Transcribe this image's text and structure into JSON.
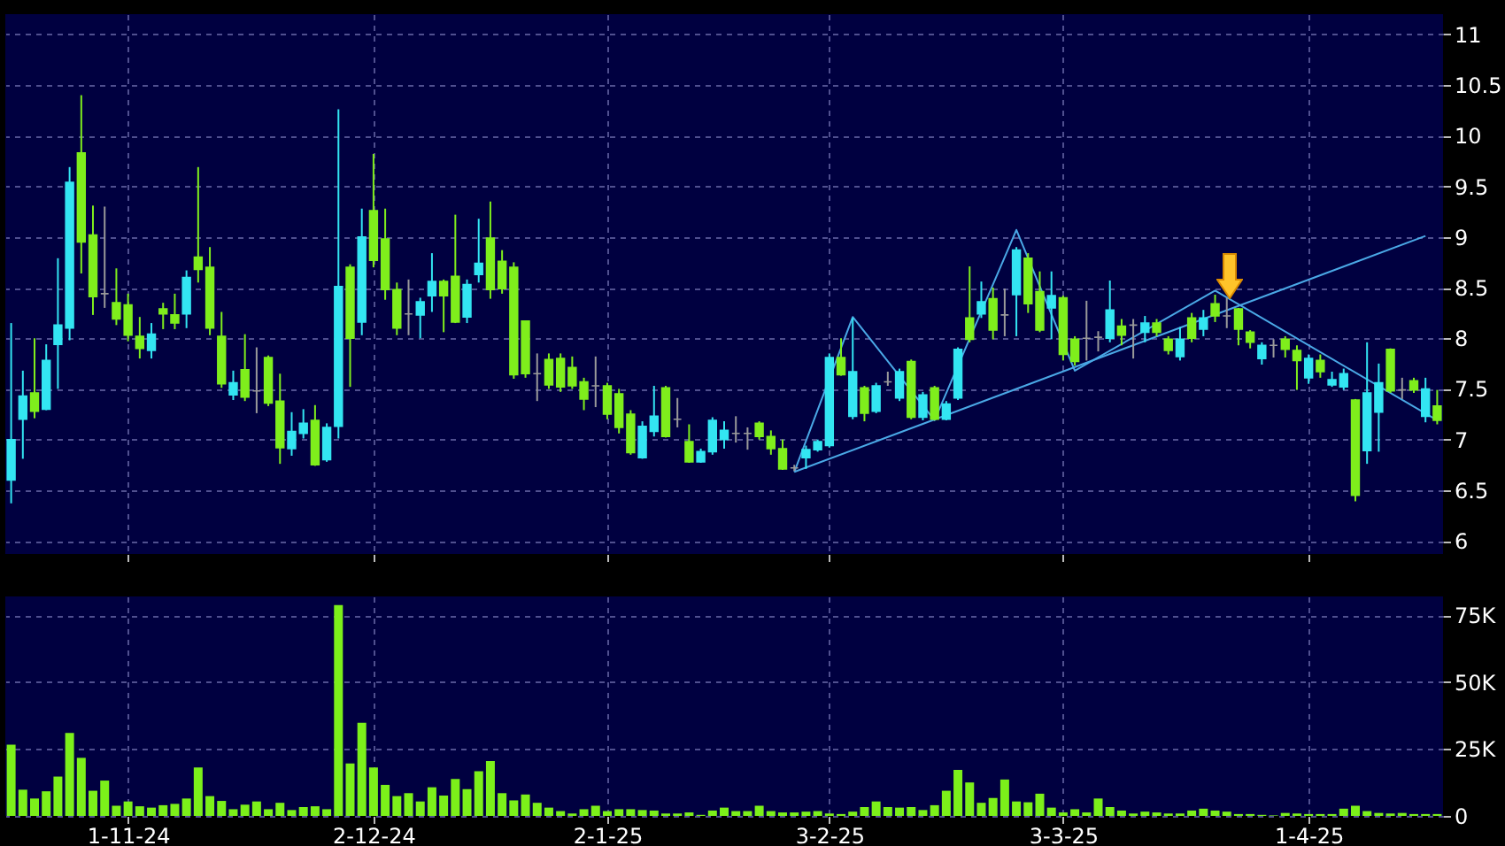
{
  "chart_data": [
    {
      "type": "candlestick",
      "grid": true,
      "ylim": [
        5.87,
        11.2
      ],
      "yticks": [
        6,
        6.5,
        7,
        7.5,
        8,
        8.5,
        9,
        9.5,
        10,
        10.5,
        11
      ],
      "categories": [
        null,
        null,
        null,
        null,
        null,
        null,
        null,
        null,
        null,
        null,
        null,
        null,
        null,
        null,
        null,
        null,
        null,
        null,
        null,
        null,
        null,
        null,
        null,
        null,
        null,
        null,
        null,
        null,
        null,
        null,
        null,
        null,
        null,
        null,
        null,
        null,
        null,
        null,
        null,
        null,
        null,
        null,
        null,
        null,
        null,
        null,
        null,
        null,
        null,
        null,
        null,
        null,
        null,
        null,
        null,
        null,
        null,
        null,
        null,
        null,
        null,
        null,
        null,
        null,
        null,
        null,
        null,
        null,
        null,
        null,
        null,
        null,
        null,
        null,
        null,
        null,
        null,
        null,
        null,
        null,
        null,
        null,
        null,
        null,
        null,
        null,
        null,
        null,
        null,
        null,
        null,
        null,
        null,
        null,
        null,
        null,
        null,
        null,
        null,
        null,
        null,
        null,
        null,
        null,
        null,
        null,
        null,
        null,
        null,
        null,
        null,
        null,
        null,
        null,
        null,
        null,
        null,
        null,
        null,
        null,
        null,
        null,
        null
      ],
      "ohlc": [
        [
          6.6,
          8.15,
          6.37,
          7.0
        ],
        [
          7.2,
          7.68,
          6.81,
          7.43
        ],
        [
          7.46,
          8.0,
          7.21,
          7.28
        ],
        [
          7.3,
          7.94,
          7.29,
          7.78
        ],
        [
          7.94,
          8.79,
          7.5,
          8.13
        ],
        [
          8.1,
          9.69,
          7.98,
          9.54
        ],
        [
          9.83,
          10.4,
          8.64,
          8.95
        ],
        [
          9.02,
          9.31,
          8.23,
          8.41
        ],
        [
          8.44,
          9.3,
          8.3,
          8.44
        ],
        [
          8.35,
          8.69,
          8.13,
          8.19
        ],
        [
          8.33,
          8.44,
          7.97,
          8.03
        ],
        [
          8.02,
          8.21,
          7.8,
          7.9
        ],
        [
          7.88,
          8.15,
          7.8,
          8.04
        ],
        [
          8.29,
          8.35,
          8.09,
          8.24
        ],
        [
          8.23,
          8.44,
          8.09,
          8.15
        ],
        [
          8.24,
          8.67,
          8.1,
          8.6
        ],
        [
          8.8,
          9.69,
          8.55,
          8.68
        ],
        [
          8.7,
          8.9,
          8.03,
          8.1
        ],
        [
          8.02,
          8.26,
          7.51,
          7.55
        ],
        [
          7.44,
          7.68,
          7.39,
          7.56
        ],
        [
          7.69,
          8.04,
          7.38,
          7.42
        ],
        [
          7.48,
          7.91,
          7.26,
          7.48
        ],
        [
          7.81,
          7.83,
          7.33,
          7.36
        ],
        [
          7.38,
          7.65,
          6.76,
          6.92
        ],
        [
          6.91,
          7.27,
          6.84,
          7.08
        ],
        [
          7.06,
          7.3,
          7.01,
          7.16
        ],
        [
          7.19,
          7.34,
          6.74,
          6.75
        ],
        [
          6.8,
          7.16,
          6.78,
          7.12
        ],
        [
          7.13,
          10.26,
          7.01,
          8.51
        ],
        [
          8.7,
          8.73,
          7.52,
          8.0
        ],
        [
          8.16,
          9.28,
          8.03,
          9.0
        ],
        [
          9.26,
          9.82,
          8.7,
          8.77
        ],
        [
          8.98,
          9.28,
          8.38,
          8.48
        ],
        [
          8.48,
          8.55,
          8.03,
          8.1
        ],
        [
          8.24,
          8.58,
          8.03,
          8.24
        ],
        [
          8.23,
          8.4,
          8.0,
          8.36
        ],
        [
          8.42,
          8.84,
          8.26,
          8.56
        ],
        [
          8.56,
          8.58,
          8.06,
          8.42
        ],
        [
          8.61,
          9.22,
          8.15,
          8.16
        ],
        [
          8.21,
          8.58,
          8.15,
          8.53
        ],
        [
          8.63,
          9.18,
          8.55,
          8.74
        ],
        [
          8.99,
          9.35,
          8.39,
          8.48
        ],
        [
          8.76,
          8.87,
          8.44,
          8.49
        ],
        [
          8.7,
          8.75,
          7.6,
          7.64
        ],
        [
          8.17,
          8.17,
          7.61,
          7.65
        ],
        [
          7.65,
          7.85,
          7.38,
          7.65
        ],
        [
          7.79,
          7.85,
          7.5,
          7.54
        ],
        [
          7.8,
          7.85,
          7.47,
          7.52
        ],
        [
          7.71,
          7.82,
          7.5,
          7.53
        ],
        [
          7.57,
          7.61,
          7.29,
          7.4
        ],
        [
          7.53,
          7.82,
          7.32,
          7.53
        ],
        [
          7.53,
          7.56,
          7.2,
          7.25
        ],
        [
          7.45,
          7.5,
          7.06,
          7.12
        ],
        [
          7.25,
          7.29,
          6.85,
          6.87
        ],
        [
          6.82,
          7.18,
          6.81,
          7.13
        ],
        [
          7.08,
          7.53,
          7.03,
          7.23
        ],
        [
          7.51,
          7.53,
          7.02,
          7.03
        ],
        [
          7.2,
          7.41,
          7.12,
          7.2
        ],
        [
          6.98,
          7.15,
          6.77,
          6.78
        ],
        [
          6.78,
          6.91,
          6.77,
          6.88
        ],
        [
          6.88,
          7.22,
          6.85,
          7.19
        ],
        [
          7.0,
          7.18,
          6.91,
          7.09
        ],
        [
          7.06,
          7.23,
          6.97,
          7.06
        ],
        [
          7.06,
          7.12,
          6.9,
          7.06
        ],
        [
          7.16,
          7.18,
          7.0,
          7.03
        ],
        [
          7.03,
          7.09,
          6.85,
          6.91
        ],
        [
          6.91,
          7.0,
          6.7,
          6.71
        ],
        [
          6.72,
          6.75,
          6.69,
          6.72
        ],
        [
          6.82,
          6.94,
          6.71,
          6.9
        ],
        [
          6.9,
          7.0,
          6.88,
          6.98
        ],
        [
          6.94,
          7.85,
          6.92,
          7.81
        ],
        [
          7.81,
          8.0,
          7.63,
          7.64
        ],
        [
          7.23,
          8.2,
          7.2,
          7.67
        ],
        [
          7.51,
          7.53,
          7.18,
          7.26
        ],
        [
          7.28,
          7.56,
          7.26,
          7.53
        ],
        [
          7.57,
          7.67,
          7.53,
          7.57
        ],
        [
          7.41,
          7.7,
          7.38,
          7.67
        ],
        [
          7.77,
          7.79,
          7.2,
          7.22
        ],
        [
          7.22,
          7.47,
          7.19,
          7.44
        ],
        [
          7.51,
          7.53,
          7.19,
          7.2
        ],
        [
          7.2,
          7.38,
          7.19,
          7.35
        ],
        [
          7.41,
          7.91,
          7.39,
          7.89
        ],
        [
          8.2,
          8.71,
          7.96,
          7.99
        ],
        [
          8.24,
          8.56,
          8.2,
          8.36
        ],
        [
          8.39,
          8.5,
          7.99,
          8.08
        ],
        [
          8.23,
          8.49,
          8.02,
          8.23
        ],
        [
          8.43,
          8.9,
          8.02,
          8.87
        ],
        [
          8.79,
          8.84,
          8.25,
          8.34
        ],
        [
          8.46,
          8.66,
          8.06,
          8.08
        ],
        [
          8.3,
          8.66,
          7.99,
          8.42
        ],
        [
          8.4,
          8.42,
          7.78,
          7.84
        ],
        [
          7.99,
          8.02,
          7.73,
          7.77
        ],
        [
          8.0,
          8.37,
          7.78,
          8.0
        ],
        [
          8.01,
          8.07,
          7.87,
          8.01
        ],
        [
          8.0,
          8.57,
          7.96,
          8.28
        ],
        [
          8.12,
          8.19,
          7.93,
          8.03
        ],
        [
          8.13,
          8.19,
          7.8,
          8.13
        ],
        [
          8.06,
          8.22,
          7.96,
          8.15
        ],
        [
          8.15,
          8.19,
          8.02,
          8.06
        ],
        [
          7.99,
          8.02,
          7.84,
          7.88
        ],
        [
          7.82,
          8.11,
          7.78,
          7.99
        ],
        [
          8.2,
          8.25,
          7.96,
          8.0
        ],
        [
          8.09,
          8.28,
          8.02,
          8.2
        ],
        [
          8.34,
          8.43,
          8.16,
          8.22
        ],
        [
          8.22,
          8.4,
          8.1,
          8.22
        ],
        [
          8.29,
          8.3,
          7.93,
          8.09
        ],
        [
          8.06,
          8.08,
          7.9,
          7.96
        ],
        [
          7.8,
          7.96,
          7.74,
          7.93
        ],
        [
          7.93,
          7.99,
          7.81,
          7.93
        ],
        [
          7.99,
          8.02,
          7.81,
          7.89
        ],
        [
          7.88,
          7.93,
          7.49,
          7.78
        ],
        [
          7.61,
          7.84,
          7.55,
          7.8
        ],
        [
          7.78,
          7.84,
          7.61,
          7.67
        ],
        [
          7.54,
          7.67,
          7.52,
          7.59
        ],
        [
          7.52,
          7.7,
          7.49,
          7.65
        ],
        [
          7.39,
          7.4,
          6.39,
          6.45
        ],
        [
          6.89,
          7.96,
          6.76,
          7.46
        ],
        [
          7.27,
          7.75,
          6.88,
          7.56
        ],
        [
          7.89,
          7.9,
          7.46,
          7.48
        ],
        [
          7.49,
          7.61,
          7.4,
          7.49
        ],
        [
          7.58,
          7.61,
          7.46,
          7.49
        ],
        [
          7.23,
          7.61,
          7.17,
          7.5
        ],
        [
          7.33,
          7.49,
          7.15,
          7.19
        ]
      ],
      "colors": [
        "#33e5f2",
        "#33e5f2",
        "#7fee1c",
        "#33e5f2",
        "#33e5f2",
        "#33e5f2",
        "#7fee1c",
        "#7fee1c",
        "#9a9a9a",
        "#7fee1c",
        "#7fee1c",
        "#7fee1c",
        "#33e5f2",
        "#7fee1c",
        "#7fee1c",
        "#33e5f2",
        "#7fee1c",
        "#7fee1c",
        "#7fee1c",
        "#33e5f2",
        "#7fee1c",
        "#9a9a9a",
        "#7fee1c",
        "#7fee1c",
        "#33e5f2",
        "#33e5f2",
        "#7fee1c",
        "#33e5f2",
        "#33e5f2",
        "#7fee1c",
        "#33e5f2",
        "#7fee1c",
        "#7fee1c",
        "#7fee1c",
        "#9a9a9a",
        "#33e5f2",
        "#33e5f2",
        "#7fee1c",
        "#7fee1c",
        "#33e5f2",
        "#33e5f2",
        "#7fee1c",
        "#7fee1c",
        "#7fee1c",
        "#7fee1c",
        "#9a9a9a",
        "#7fee1c",
        "#7fee1c",
        "#7fee1c",
        "#7fee1c",
        "#9a9a9a",
        "#7fee1c",
        "#7fee1c",
        "#7fee1c",
        "#33e5f2",
        "#33e5f2",
        "#7fee1c",
        "#9a9a9a",
        "#7fee1c",
        "#33e5f2",
        "#33e5f2",
        "#33e5f2",
        "#9a9a9a",
        "#9a9a9a",
        "#7fee1c",
        "#7fee1c",
        "#7fee1c",
        "#9a9a9a",
        "#33e5f2",
        "#33e5f2",
        "#33e5f2",
        "#7fee1c",
        "#33e5f2",
        "#7fee1c",
        "#33e5f2",
        "#9a9a9a",
        "#33e5f2",
        "#7fee1c",
        "#33e5f2",
        "#7fee1c",
        "#33e5f2",
        "#33e5f2",
        "#7fee1c",
        "#33e5f2",
        "#7fee1c",
        "#9a9a9a",
        "#33e5f2",
        "#7fee1c",
        "#7fee1c",
        "#33e5f2",
        "#7fee1c",
        "#7fee1c",
        "#9a9a9a",
        "#9a9a9a",
        "#33e5f2",
        "#7fee1c",
        "#9a9a9a",
        "#33e5f2",
        "#7fee1c",
        "#7fee1c",
        "#33e5f2",
        "#7fee1c",
        "#33e5f2",
        "#7fee1c",
        "#9a9a9a",
        "#7fee1c",
        "#7fee1c",
        "#33e5f2",
        "#9a9a9a",
        "#7fee1c",
        "#7fee1c",
        "#33e5f2",
        "#7fee1c",
        "#33e5f2",
        "#33e5f2",
        "#7fee1c",
        "#33e5f2",
        "#33e5f2",
        "#7fee1c",
        "#9a9a9a",
        "#7fee1c",
        "#33e5f2",
        "#7fee1c"
      ],
      "marker": "none",
      "series": [
        {
          "type": "line",
          "color": "#4aa8e6",
          "values": [
            null,
            null,
            null,
            null,
            null,
            null,
            null,
            null,
            null,
            null,
            null,
            null,
            null,
            null,
            null,
            null,
            null,
            null,
            null,
            null,
            null,
            null,
            null,
            null,
            null,
            null,
            null,
            null,
            null,
            null,
            null,
            null,
            null,
            null,
            null,
            null,
            null,
            null,
            null,
            null,
            null,
            null,
            null,
            null,
            null,
            null,
            null,
            null,
            null,
            null,
            null,
            null,
            null,
            null,
            null,
            null,
            null,
            null,
            null,
            null,
            null,
            null,
            null,
            null,
            null,
            null,
            null,
            6.68,
            null,
            null,
            null,
            null,
            8.21,
            null,
            null,
            null,
            null,
            null,
            null,
            7.19,
            null,
            null,
            null,
            null,
            null,
            null,
            9.07,
            null,
            null,
            null,
            null,
            7.68,
            null,
            null,
            null,
            null,
            null,
            null,
            null,
            null,
            null,
            null,
            null,
            8.47,
            null,
            null,
            null,
            null,
            null,
            null,
            null,
            null,
            null,
            null,
            null,
            null,
            null,
            null,
            null,
            null,
            null,
            null,
            7.19
          ]
        },
        {
          "type": "line",
          "color": "#4aa8e6",
          "values": [
            null,
            null,
            null,
            null,
            null,
            null,
            null,
            null,
            null,
            null,
            null,
            null,
            null,
            null,
            null,
            null,
            null,
            null,
            null,
            null,
            null,
            null,
            null,
            null,
            null,
            null,
            null,
            null,
            null,
            null,
            null,
            null,
            null,
            null,
            null,
            null,
            null,
            null,
            null,
            null,
            null,
            null,
            null,
            null,
            null,
            null,
            null,
            null,
            null,
            null,
            null,
            null,
            null,
            null,
            null,
            null,
            null,
            null,
            null,
            null,
            null,
            null,
            null,
            null,
            null,
            null,
            null,
            6.68,
            null,
            null,
            null,
            null,
            null,
            null,
            null,
            null,
            null,
            null,
            null,
            null,
            null,
            null,
            null,
            null,
            null,
            null,
            null,
            null,
            null,
            null,
            null,
            null,
            null,
            null,
            null,
            null,
            null,
            null,
            null,
            null,
            null,
            null,
            null,
            null,
            null,
            null,
            null,
            null,
            null,
            null,
            null,
            null,
            null,
            null,
            null,
            null,
            null,
            null,
            null,
            null,
            null,
            9.01,
            null
          ]
        }
      ]
    },
    {
      "type": "bar",
      "grid": true,
      "color": "#7cf01a",
      "ylim": [
        0,
        82
      ],
      "yticks": [
        0,
        {
          "value": 25,
          "label": "25K"
        },
        {
          "value": 50,
          "label": "50K"
        },
        {
          "value": 75,
          "label": "75K"
        }
      ],
      "categories": [
        null,
        null,
        null,
        null,
        null,
        null,
        null,
        null,
        null,
        null,
        "1-11-24",
        null,
        null,
        null,
        null,
        null,
        null,
        null,
        null,
        null,
        null,
        null,
        null,
        null,
        null,
        null,
        null,
        null,
        null,
        null,
        null,
        "2-12-24",
        null,
        null,
        null,
        null,
        null,
        null,
        null,
        null,
        null,
        null,
        null,
        null,
        null,
        null,
        null,
        null,
        null,
        null,
        null,
        "2-1-25",
        null,
        null,
        null,
        null,
        null,
        null,
        null,
        null,
        null,
        null,
        null,
        null,
        null,
        null,
        null,
        null,
        null,
        null,
        "3-2-25",
        null,
        null,
        null,
        null,
        null,
        null,
        null,
        null,
        null,
        null,
        null,
        null,
        null,
        null,
        null,
        null,
        null,
        null,
        null,
        "3-3-25",
        null,
        null,
        null,
        null,
        null,
        null,
        null,
        null,
        null,
        null,
        null,
        null,
        null,
        null,
        null,
        null,
        null,
        null,
        null,
        null,
        "1-4-25",
        null,
        null,
        null,
        null,
        null,
        null,
        null,
        null,
        null,
        null,
        null
      ],
      "values": [
        26.6,
        9.8,
        6.5,
        9.2,
        14.7,
        31.0,
        21.7,
        9.4,
        13.2,
        3.8,
        5.4,
        3.6,
        3.1,
        4.0,
        4.5,
        6.5,
        18.1,
        7.4,
        5.6,
        2.5,
        4.2,
        5.4,
        2.5,
        4.9,
        2.2,
        3.3,
        3.6,
        2.5,
        78.8,
        19.6,
        34.8,
        18.1,
        11.6,
        7.4,
        8.5,
        5.4,
        10.7,
        7.6,
        13.8,
        10.0,
        16.7,
        20.5,
        8.5,
        5.8,
        8.0,
        4.9,
        3.1,
        1.8,
        0.9,
        2.5,
        3.8,
        1.8,
        2.5,
        2.5,
        2.2,
        2.0,
        0.9,
        0.9,
        1.3,
        0.4,
        2.0,
        3.1,
        1.8,
        1.8,
        3.8,
        1.8,
        1.3,
        1.3,
        1.6,
        1.8,
        0.9,
        0.7,
        1.6,
        3.3,
        5.4,
        3.3,
        3.1,
        3.3,
        2.2,
        4.0,
        9.4,
        17.2,
        12.5,
        4.9,
        6.7,
        13.6,
        5.4,
        5.1,
        8.3,
        3.1,
        1.3,
        2.5,
        1.3,
        6.5,
        3.3,
        2.0,
        0.9,
        1.6,
        1.3,
        0.9,
        0.9,
        2.0,
        2.7,
        2.0,
        1.6,
        0.7,
        0.7,
        0.4,
        0.2,
        1.1,
        0.9,
        0.7,
        0.7,
        0.7,
        2.7,
        3.8,
        1.8,
        1.1,
        0.9,
        1.1,
        0.7,
        0.7,
        0.7
      ]
    }
  ]
}
